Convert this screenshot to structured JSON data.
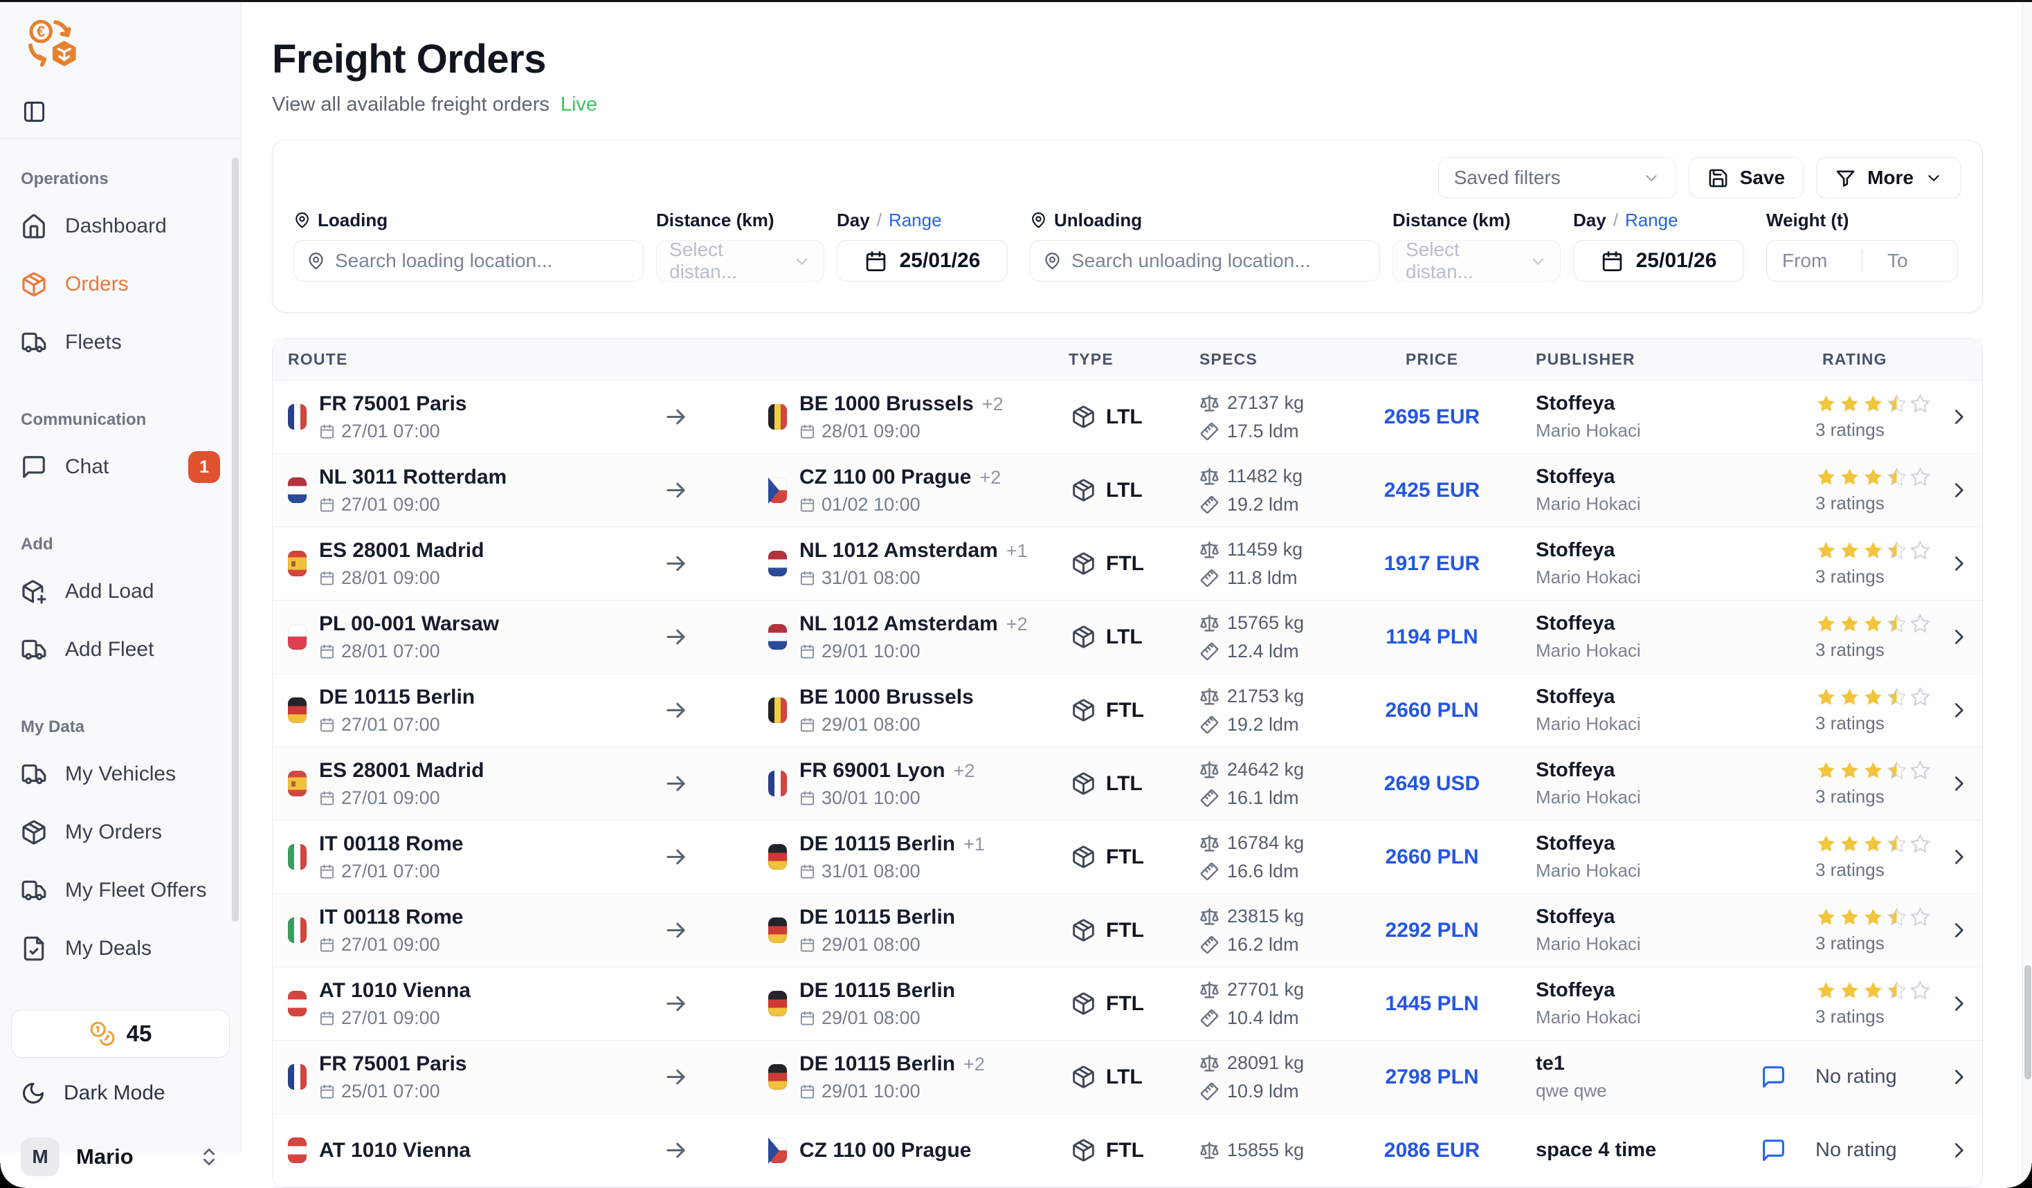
{
  "sidebar": {
    "sections": [
      {
        "label": "Operations",
        "items": [
          {
            "icon": "home",
            "label": "Dashboard",
            "active": false
          },
          {
            "icon": "package",
            "label": "Orders",
            "active": true
          },
          {
            "icon": "truck",
            "label": "Fleets",
            "active": false
          }
        ]
      },
      {
        "label": "Communication",
        "items": [
          {
            "icon": "chat",
            "label": "Chat",
            "badge": "1",
            "active": false
          }
        ]
      },
      {
        "label": "Add",
        "items": [
          {
            "icon": "package-plus",
            "label": "Add Load",
            "active": false
          },
          {
            "icon": "truck",
            "label": "Add Fleet",
            "active": false
          }
        ]
      },
      {
        "label": "My Data",
        "items": [
          {
            "icon": "truck",
            "label": "My Vehicles",
            "active": false
          },
          {
            "icon": "package",
            "label": "My Orders",
            "active": false
          },
          {
            "icon": "truck",
            "label": "My Fleet Offers",
            "active": false
          },
          {
            "icon": "file-check",
            "label": "My Deals",
            "active": false
          }
        ]
      }
    ],
    "credits": "45",
    "dark_mode_label": "Dark Mode",
    "user": {
      "initial": "M",
      "name": "Mario"
    }
  },
  "header": {
    "title": "Freight Orders",
    "subtitle": "View all available freight orders",
    "live": "Live"
  },
  "filters": {
    "saved_filters": "Saved filters",
    "save": "Save",
    "more": "More",
    "loading_label": "Loading",
    "loading_placeholder": "Search loading location...",
    "unloading_label": "Unloading",
    "unloading_placeholder": "Search unloading location...",
    "distance_label": "Distance (km)",
    "distance_placeholder": "Select distan...",
    "day_label": "Day",
    "range_label": "Range",
    "loading_date": "25/01/26",
    "unloading_date": "25/01/26",
    "weight_label": "Weight (t)",
    "weight_from": "From",
    "weight_to": "To"
  },
  "table": {
    "columns": [
      "ROUTE",
      "TYPE",
      "SPECS",
      "PRICE",
      "PUBLISHER",
      "RATING"
    ],
    "rows": [
      {
        "origin": {
          "flag": "fr",
          "name": "FR 75001 Paris",
          "extra": "",
          "date": "27/01 07:00"
        },
        "dest": {
          "flag": "be",
          "name": "BE 1000 Brussels",
          "extra": "+2",
          "date": "28/01 09:00"
        },
        "type": "LTL",
        "weight": "27137 kg",
        "ldm": "17.5 ldm",
        "price": "2695 EUR",
        "publisher": "Stoffeya",
        "publisher_sub": "Mario Hokaci",
        "has_message": false,
        "rating": 3.5,
        "rating_label": "3 ratings"
      },
      {
        "origin": {
          "flag": "nl",
          "name": "NL 3011 Rotterdam",
          "extra": "",
          "date": "27/01 09:00"
        },
        "dest": {
          "flag": "cz",
          "name": "CZ 110 00 Prague",
          "extra": "+2",
          "date": "01/02 10:00"
        },
        "type": "LTL",
        "weight": "11482 kg",
        "ldm": "19.2 ldm",
        "price": "2425 EUR",
        "publisher": "Stoffeya",
        "publisher_sub": "Mario Hokaci",
        "has_message": false,
        "rating": 3.5,
        "rating_label": "3 ratings"
      },
      {
        "origin": {
          "flag": "es",
          "name": "ES 28001 Madrid",
          "extra": "",
          "date": "28/01 09:00"
        },
        "dest": {
          "flag": "nl",
          "name": "NL 1012 Amsterdam",
          "extra": "+1",
          "date": "31/01 08:00"
        },
        "type": "FTL",
        "weight": "11459 kg",
        "ldm": "11.8 ldm",
        "price": "1917 EUR",
        "publisher": "Stoffeya",
        "publisher_sub": "Mario Hokaci",
        "has_message": false,
        "rating": 3.5,
        "rating_label": "3 ratings"
      },
      {
        "origin": {
          "flag": "pl",
          "name": "PL 00-001 Warsaw",
          "extra": "",
          "date": "28/01 07:00"
        },
        "dest": {
          "flag": "nl",
          "name": "NL 1012 Amsterdam",
          "extra": "+2",
          "date": "29/01 10:00"
        },
        "type": "LTL",
        "weight": "15765 kg",
        "ldm": "12.4 ldm",
        "price": "1194 PLN",
        "publisher": "Stoffeya",
        "publisher_sub": "Mario Hokaci",
        "has_message": false,
        "rating": 3.5,
        "rating_label": "3 ratings"
      },
      {
        "origin": {
          "flag": "de",
          "name": "DE 10115 Berlin",
          "extra": "",
          "date": "27/01 07:00"
        },
        "dest": {
          "flag": "be",
          "name": "BE 1000 Brussels",
          "extra": "",
          "date": "29/01 08:00"
        },
        "type": "FTL",
        "weight": "21753 kg",
        "ldm": "19.2 ldm",
        "price": "2660 PLN",
        "publisher": "Stoffeya",
        "publisher_sub": "Mario Hokaci",
        "has_message": false,
        "rating": 3.5,
        "rating_label": "3 ratings"
      },
      {
        "origin": {
          "flag": "es",
          "name": "ES 28001 Madrid",
          "extra": "",
          "date": "27/01 09:00"
        },
        "dest": {
          "flag": "fr",
          "name": "FR 69001 Lyon",
          "extra": "+2",
          "date": "30/01 10:00"
        },
        "type": "LTL",
        "weight": "24642 kg",
        "ldm": "16.1 ldm",
        "price": "2649 USD",
        "publisher": "Stoffeya",
        "publisher_sub": "Mario Hokaci",
        "has_message": false,
        "rating": 3.5,
        "rating_label": "3 ratings"
      },
      {
        "origin": {
          "flag": "it",
          "name": "IT 00118 Rome",
          "extra": "",
          "date": "27/01 07:00"
        },
        "dest": {
          "flag": "de",
          "name": "DE 10115 Berlin",
          "extra": "+1",
          "date": "31/01 08:00"
        },
        "type": "FTL",
        "weight": "16784 kg",
        "ldm": "16.6 ldm",
        "price": "2660 PLN",
        "publisher": "Stoffeya",
        "publisher_sub": "Mario Hokaci",
        "has_message": false,
        "rating": 3.5,
        "rating_label": "3 ratings"
      },
      {
        "origin": {
          "flag": "it",
          "name": "IT 00118 Rome",
          "extra": "",
          "date": "27/01 09:00"
        },
        "dest": {
          "flag": "de",
          "name": "DE 10115 Berlin",
          "extra": "",
          "date": "29/01 08:00"
        },
        "type": "FTL",
        "weight": "23815 kg",
        "ldm": "16.2 ldm",
        "price": "2292 PLN",
        "publisher": "Stoffeya",
        "publisher_sub": "Mario Hokaci",
        "has_message": false,
        "rating": 3.5,
        "rating_label": "3 ratings"
      },
      {
        "origin": {
          "flag": "at",
          "name": "AT 1010 Vienna",
          "extra": "",
          "date": "27/01 09:00"
        },
        "dest": {
          "flag": "de",
          "name": "DE 10115 Berlin",
          "extra": "",
          "date": "29/01 08:00"
        },
        "type": "FTL",
        "weight": "27701 kg",
        "ldm": "10.4 ldm",
        "price": "1445 PLN",
        "publisher": "Stoffeya",
        "publisher_sub": "Mario Hokaci",
        "has_message": false,
        "rating": 3.5,
        "rating_label": "3 ratings"
      },
      {
        "origin": {
          "flag": "fr",
          "name": "FR 75001 Paris",
          "extra": "",
          "date": "25/01 07:00"
        },
        "dest": {
          "flag": "de",
          "name": "DE 10115 Berlin",
          "extra": "+2",
          "date": "29/01 10:00"
        },
        "type": "LTL",
        "weight": "28091 kg",
        "ldm": "10.9 ldm",
        "price": "2798 PLN",
        "publisher": "te1",
        "publisher_sub": "qwe qwe",
        "has_message": true,
        "rating": null,
        "rating_label": "No rating"
      },
      {
        "origin": {
          "flag": "at",
          "name": "AT 1010 Vienna",
          "extra": "",
          "date": ""
        },
        "dest": {
          "flag": "cz",
          "name": "CZ 110 00 Prague",
          "extra": "",
          "date": ""
        },
        "type": "FTL",
        "weight": "15855 kg",
        "ldm": "",
        "price": "2086 EUR",
        "publisher": "space 4 time",
        "publisher_sub": "",
        "has_message": true,
        "rating": null,
        "rating_label": "No rating"
      }
    ]
  },
  "colors": {
    "accent_orange": "#e8793c",
    "badge_red": "#e0512f",
    "price_blue": "#2456e4",
    "link_blue": "#2563eb",
    "star_yellow": "#f2c53d",
    "live_green": "#3ec463"
  }
}
